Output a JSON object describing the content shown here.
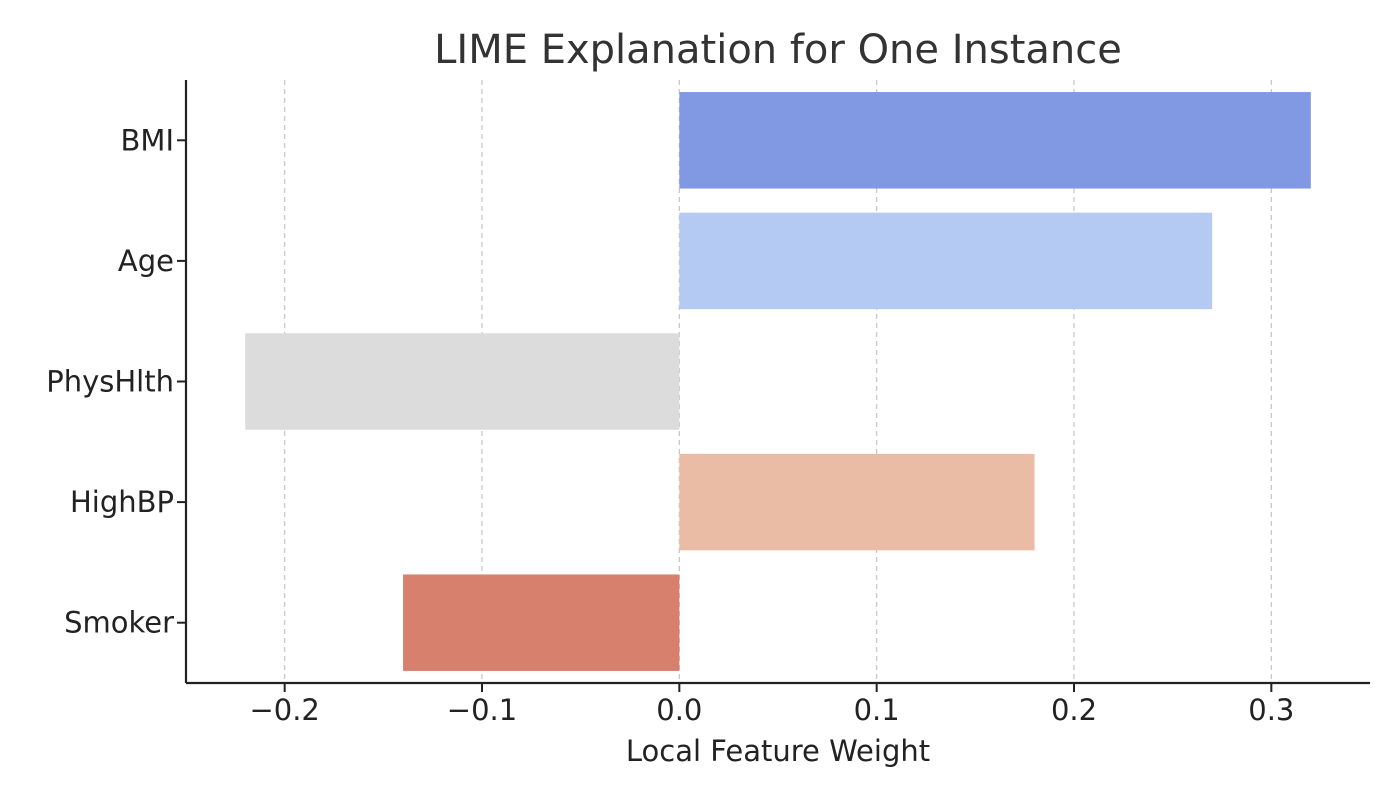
{
  "chart_data": {
    "type": "bar",
    "orientation": "horizontal",
    "title": "LIME Explanation for One Instance",
    "xlabel": "Local Feature Weight",
    "ylabel": "",
    "categories": [
      "BMI",
      "Age",
      "PhysHlth",
      "HighBP",
      "Smoker"
    ],
    "values": [
      0.32,
      0.27,
      -0.22,
      0.18,
      -0.14
    ],
    "colors": [
      "#8099e2",
      "#b5caf2",
      "#dcdcdc",
      "#eabba5",
      "#d6806d"
    ],
    "xlim": [
      -0.25,
      0.35
    ],
    "xticks": [
      -0.2,
      -0.1,
      0.0,
      0.1,
      0.2,
      0.3
    ],
    "xtick_labels": [
      "−0.2",
      "−0.1",
      "0.0",
      "0.1",
      "0.2",
      "0.3"
    ],
    "grid": "x-dashed",
    "legend": "none"
  }
}
